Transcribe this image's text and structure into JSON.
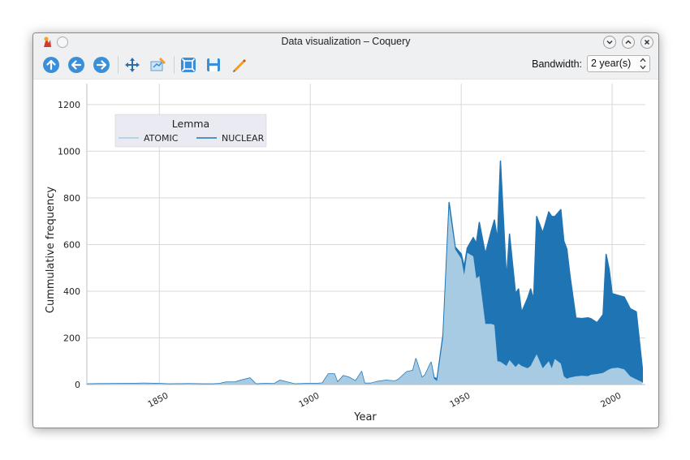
{
  "window": {
    "title": "Data visualization – Coquery"
  },
  "toolbar": {
    "tools": [
      "go-up-icon",
      "go-back-icon",
      "go-forward-icon",
      "pan-icon",
      "edit-axes-icon",
      "zoom-fit-icon",
      "save-icon",
      "draw-icon"
    ],
    "bandwidth_label": "Bandwidth:",
    "bandwidth_value": "2 year(s)"
  },
  "colors": {
    "atomic": "#a6cbe3",
    "nuclear": "#1f74b4",
    "icon_blue": "#3b8fd9"
  },
  "chart_data": {
    "type": "area",
    "stacked": true,
    "xlabel": "Year",
    "ylabel": "Cummulative frequency",
    "xlim": [
      1826,
      2011
    ],
    "ylim": [
      0,
      1290
    ],
    "xticks": [
      1850,
      1900,
      1950,
      2000
    ],
    "yticks": [
      0,
      200,
      400,
      600,
      800,
      1000,
      1200
    ],
    "grid": true,
    "legend": {
      "title": "Lemma",
      "position": "top-left",
      "entries": [
        "ATOMIC",
        "NUCLEAR"
      ]
    },
    "x": [
      1826,
      1830,
      1840,
      1845,
      1850,
      1853,
      1860,
      1865,
      1867,
      1868,
      1870,
      1872,
      1875,
      1877,
      1880,
      1882,
      1885,
      1888,
      1890,
      1895,
      1899,
      1902,
      1904,
      1906,
      1908,
      1909,
      1911,
      1913,
      1915,
      1917,
      1918,
      1920,
      1922,
      1925,
      1928,
      1929,
      1932,
      1934,
      1935,
      1937,
      1938,
      1940,
      1941,
      1942,
      1944,
      1946,
      1948,
      1950,
      1951,
      1952,
      1954,
      1955,
      1956,
      1958,
      1960,
      1961,
      1962,
      1963,
      1965,
      1966,
      1968,
      1969,
      1970,
      1972,
      1973,
      1974,
      1975,
      1977,
      1979,
      1980,
      1981,
      1983,
      1984,
      1985,
      1986,
      1988,
      1990,
      1992,
      1993,
      1995,
      1997,
      1998,
      1999,
      2000,
      2002,
      2004,
      2006,
      2008,
      2010
    ],
    "series": [
      {
        "name": "ATOMIC",
        "values": [
          2,
          3,
          4,
          5,
          4,
          2,
          3,
          2,
          2,
          2,
          4,
          10,
          10,
          18,
          28,
          2,
          4,
          3,
          18,
          2,
          4,
          4,
          6,
          45,
          45,
          10,
          38,
          30,
          15,
          55,
          5,
          5,
          12,
          18,
          15,
          20,
          55,
          60,
          110,
          30,
          40,
          95,
          25,
          15,
          200,
          760,
          580,
          540,
          470,
          565,
          550,
          455,
          465,
          260,
          260,
          255,
          100,
          98,
          80,
          105,
          75,
          90,
          80,
          70,
          80,
          105,
          130,
          70,
          100,
          70,
          110,
          90,
          35,
          25,
          30,
          35,
          38,
          36,
          42,
          45,
          50,
          58,
          65,
          70,
          72,
          65,
          35,
          22,
          10
        ]
      },
      {
        "name": "NUCLEAR",
        "values": [
          0,
          0,
          0,
          0,
          0,
          0,
          0,
          0,
          0,
          0,
          0,
          0,
          0,
          0,
          0,
          0,
          0,
          0,
          0,
          0,
          0,
          0,
          0,
          0,
          0,
          0,
          0,
          0,
          0,
          0,
          0,
          0,
          0,
          0,
          0,
          0,
          0,
          0,
          0,
          0,
          0,
          0,
          5,
          10,
          15,
          20,
          10,
          20,
          35,
          20,
          80,
          150,
          230,
          300,
          400,
          450,
          520,
          860,
          370,
          540,
          315,
          320,
          230,
          300,
          330,
          260,
          590,
          580,
          640,
          650,
          610,
          660,
          580,
          555,
          440,
          250,
          245,
          250,
          240,
          220,
          250,
          500,
          430,
          320,
          310,
          310,
          290,
          290,
          60
        ]
      }
    ]
  }
}
